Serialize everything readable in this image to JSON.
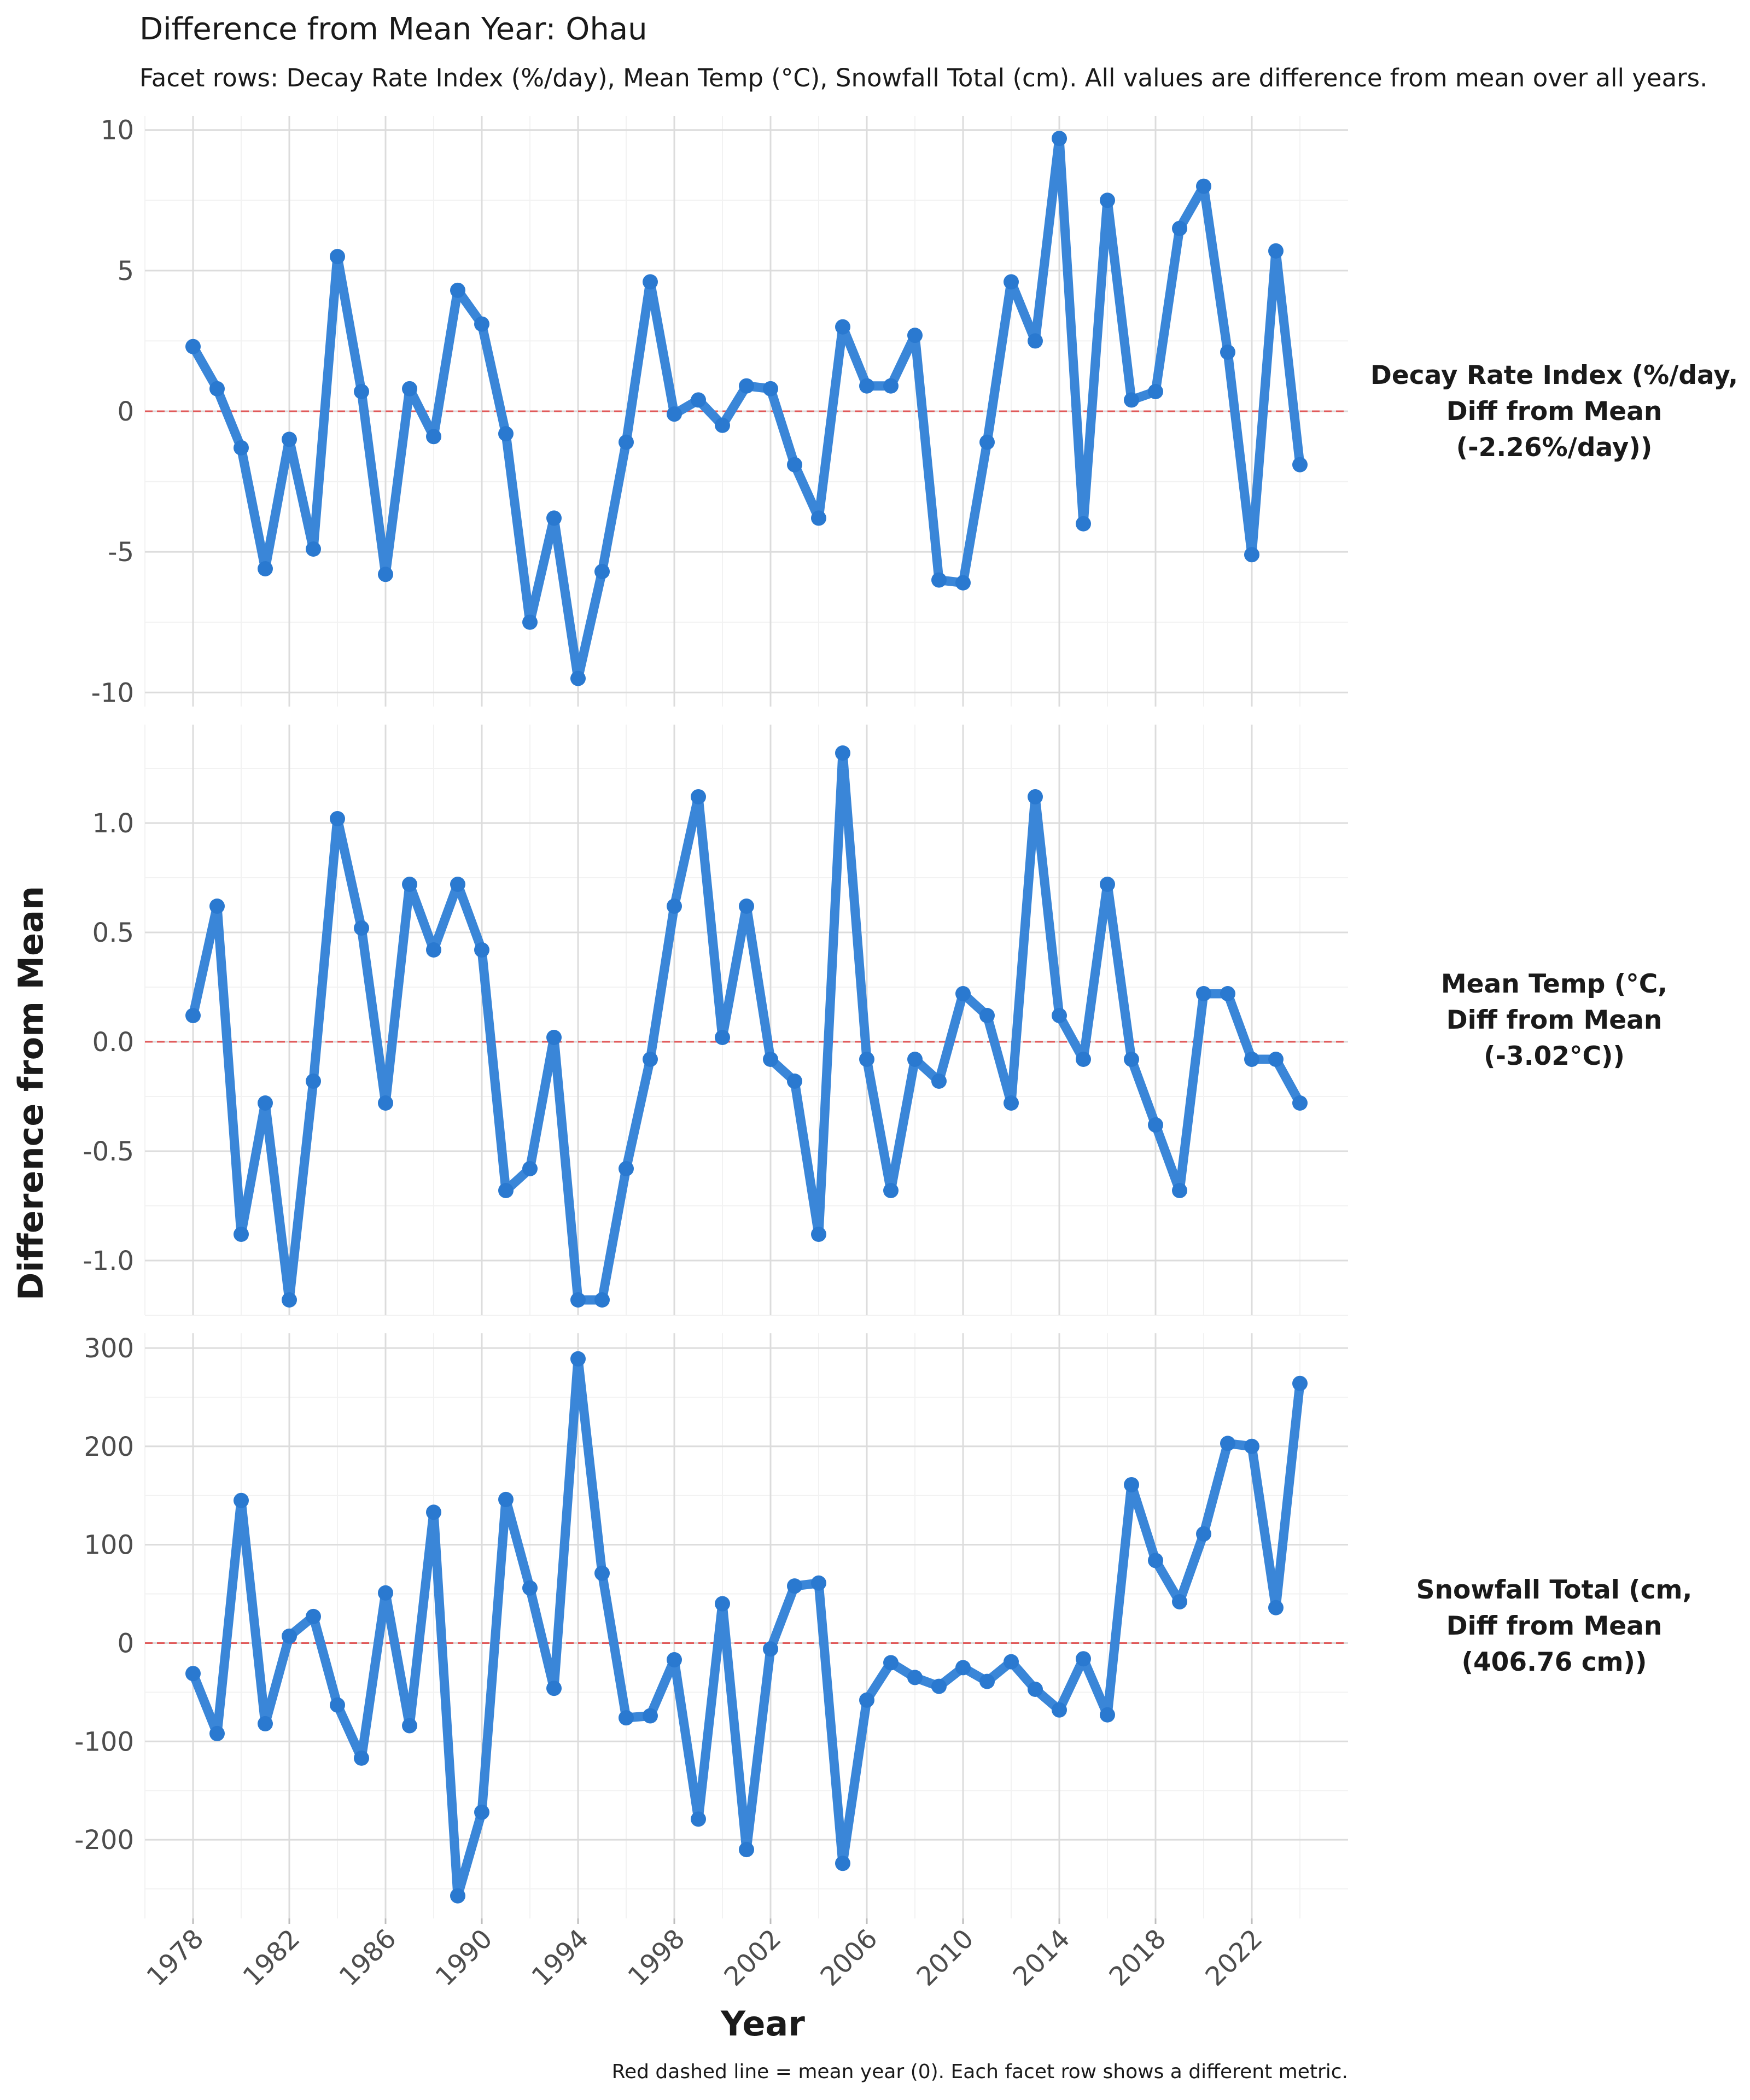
{
  "title": "Difference from Mean Year: Ohau",
  "subtitle": "Facet rows: Decay Rate Index (%/day), Mean Temp (°C), Snowfall Total (cm). All values are difference from mean over all years.",
  "xlabel": "Year",
  "ylabel": "Difference from Mean",
  "caption": "Red dashed line = mean year (0). Each facet row shows a different metric.",
  "colors": {
    "series": "#3a86d8",
    "point": "#2a79d0",
    "reference_line": "#e05a5a",
    "grid": "#dcdcdc"
  },
  "chart_data": {
    "type": "line",
    "x": [
      1978,
      1979,
      1980,
      1981,
      1982,
      1983,
      1984,
      1985,
      1986,
      1987,
      1988,
      1989,
      1990,
      1991,
      1992,
      1993,
      1994,
      1995,
      1996,
      1997,
      1998,
      1999,
      2000,
      2001,
      2002,
      2003,
      2004,
      2005,
      2006,
      2007,
      2008,
      2009,
      2010,
      2011,
      2012,
      2013,
      2014,
      2015,
      2016,
      2017,
      2018,
      2019,
      2020,
      2021,
      2022,
      2023,
      2024
    ],
    "x_ticks": [
      "1978",
      "1982",
      "1986",
      "1990",
      "1994",
      "1998",
      "2002",
      "2006",
      "2010",
      "2014",
      "2018",
      "2022"
    ],
    "xlim": [
      1976,
      2026
    ],
    "reference_line": 0,
    "facets": [
      {
        "name": "Decay Rate Index (%/day, Diff from Mean (-2.26%/day))",
        "strip_lines": [
          "Decay Rate Index (%/day,",
          "Diff from Mean",
          "(-2.26%/day))"
        ],
        "ylim": [
          -10.5,
          10.5
        ],
        "y_ticks": [
          10,
          5,
          0,
          -5,
          -10
        ],
        "y_tick_labels": [
          "10",
          "5",
          "0",
          "-5",
          "-10"
        ],
        "values": [
          2.3,
          0.8,
          -1.3,
          -5.6,
          -1.0,
          -4.9,
          5.5,
          0.7,
          -5.8,
          0.8,
          -0.9,
          4.3,
          3.1,
          -0.8,
          -7.5,
          -3.8,
          -9.5,
          -5.7,
          -1.1,
          4.6,
          -0.1,
          0.4,
          -0.5,
          0.9,
          0.8,
          -1.9,
          -3.8,
          3.0,
          0.9,
          0.9,
          2.7,
          -6.0,
          -6.1,
          -1.1,
          4.6,
          2.5,
          9.7,
          -4.0,
          7.5,
          0.4,
          0.7,
          6.5,
          8.0,
          2.1,
          -5.1,
          5.7,
          -1.9
        ]
      },
      {
        "name": "Mean Temp (°C, Diff from Mean (-3.02°C))",
        "strip_lines": [
          "Mean Temp (°C,",
          "Diff from Mean",
          "(-3.02°C))"
        ],
        "ylim": [
          -1.25,
          1.45
        ],
        "y_ticks": [
          1.0,
          0.5,
          0.0,
          -0.5,
          -1.0
        ],
        "y_tick_labels": [
          "1.0",
          "0.5",
          "0.0",
          "-0.5",
          "-1.0"
        ],
        "values": [
          0.12,
          0.62,
          -0.88,
          -0.28,
          -1.18,
          -0.18,
          1.02,
          0.52,
          -0.28,
          0.72,
          0.42,
          0.72,
          0.42,
          -0.68,
          -0.58,
          0.02,
          -1.18,
          -1.18,
          -0.58,
          -0.08,
          0.62,
          1.12,
          0.02,
          0.62,
          -0.08,
          -0.18,
          -0.88,
          1.32,
          -0.08,
          -0.68,
          -0.08,
          -0.18,
          0.22,
          0.12,
          -0.28,
          1.12,
          0.12,
          -0.08,
          0.72,
          -0.08,
          -0.38,
          -0.68,
          0.22,
          0.22,
          -0.08,
          -0.08,
          -0.28
        ]
      },
      {
        "name": "Snowfall Total (cm, Diff from Mean (406.76 cm))",
        "strip_lines": [
          "Snowfall Total (cm,",
          "Diff from Mean",
          "(406.76 cm))"
        ],
        "ylim": [
          -280,
          315
        ],
        "y_ticks": [
          300,
          200,
          100,
          0,
          -100,
          -200
        ],
        "y_tick_labels": [
          "300",
          "200",
          "100",
          "0",
          "-100",
          "-200"
        ],
        "values": [
          -31,
          -92,
          145,
          -82,
          7,
          27,
          -63,
          -117,
          51,
          -84,
          133,
          -257,
          -172,
          146,
          56,
          -46,
          289,
          71,
          -76,
          -74,
          -17,
          -179,
          40,
          -210,
          -6,
          58,
          61,
          -224,
          -58,
          -20,
          -35,
          -44,
          -25,
          -39,
          -19,
          -47,
          -68,
          -16,
          -73,
          161,
          84,
          42,
          111,
          203,
          200,
          36,
          264
        ]
      }
    ]
  }
}
